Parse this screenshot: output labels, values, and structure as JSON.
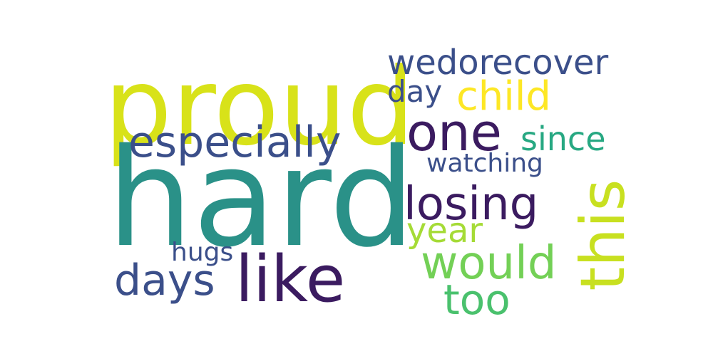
{
  "wordcloud": {
    "words": [
      {
        "text": "hard",
        "color": "#2a9188"
      },
      {
        "text": "proud",
        "color": "#d8e219"
      },
      {
        "text": "wedorecover",
        "color": "#3b4f8a"
      },
      {
        "text": "day",
        "color": "#3b4f8a"
      },
      {
        "text": "child",
        "color": "#fde725"
      },
      {
        "text": "one",
        "color": "#3b1b60"
      },
      {
        "text": "since",
        "color": "#27a882"
      },
      {
        "text": "especially",
        "color": "#3b4f8a"
      },
      {
        "text": "watching",
        "color": "#3b4f8a"
      },
      {
        "text": "losing",
        "color": "#3b1b60"
      },
      {
        "text": "year",
        "color": "#a5db36"
      },
      {
        "text": "hugs",
        "color": "#3b4f8a"
      },
      {
        "text": "like",
        "color": "#3b1b60"
      },
      {
        "text": "days",
        "color": "#3b4f8a"
      },
      {
        "text": "would",
        "color": "#73d056"
      },
      {
        "text": "too",
        "color": "#4ac16d"
      },
      {
        "text": "this",
        "color": "#c8e020"
      }
    ]
  }
}
